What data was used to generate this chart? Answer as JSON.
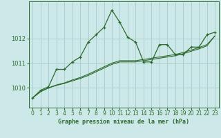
{
  "xlabel": "Graphe pression niveau de la mer (hPa)",
  "background_color": "#cce8e8",
  "grid_color": "#aacfcf",
  "line_color": "#2d6a2d",
  "x_ticks": [
    0,
    1,
    2,
    3,
    4,
    5,
    6,
    7,
    8,
    9,
    10,
    11,
    12,
    13,
    14,
    15,
    16,
    17,
    18,
    19,
    20,
    21,
    22,
    23
  ],
  "y_ticks": [
    1010,
    1011,
    1012
  ],
  "ylim": [
    1009.2,
    1013.5
  ],
  "xlim": [
    -0.5,
    23.5
  ],
  "series": [
    [
      1009.6,
      1009.9,
      1010.05,
      1010.75,
      1010.75,
      1011.05,
      1011.25,
      1011.85,
      1012.15,
      1012.45,
      1013.15,
      1012.65,
      1012.05,
      1011.85,
      1011.05,
      1011.05,
      1011.75,
      1011.75,
      1011.35,
      1011.35,
      1011.65,
      1011.65,
      1012.15,
      1012.25
    ],
    [
      1009.6,
      1009.85,
      1010.0,
      1010.1,
      1010.18,
      1010.28,
      1010.38,
      1010.5,
      1010.65,
      1010.8,
      1010.95,
      1011.05,
      1011.05,
      1011.05,
      1011.1,
      1011.15,
      1011.2,
      1011.25,
      1011.3,
      1011.38,
      1011.48,
      1011.58,
      1011.7,
      1012.1
    ],
    [
      1009.6,
      1009.85,
      1010.0,
      1010.12,
      1010.2,
      1010.32,
      1010.42,
      1010.55,
      1010.7,
      1010.85,
      1011.0,
      1011.1,
      1011.1,
      1011.1,
      1011.15,
      1011.2,
      1011.25,
      1011.3,
      1011.35,
      1011.43,
      1011.53,
      1011.63,
      1011.75,
      1012.1
    ]
  ]
}
